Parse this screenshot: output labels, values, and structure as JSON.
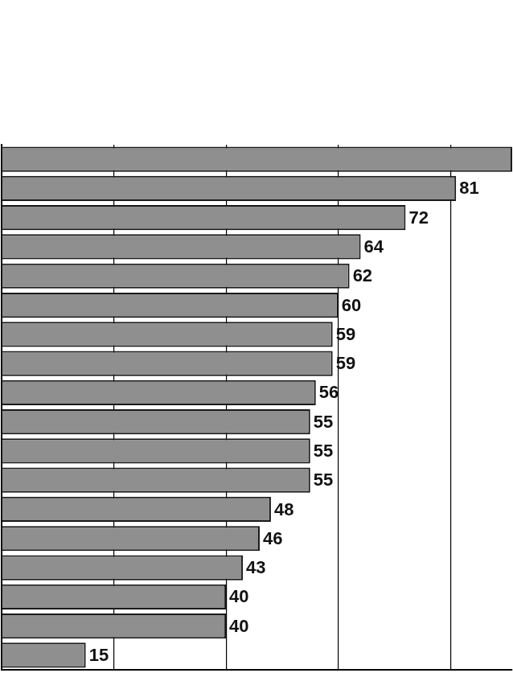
{
  "chart_data": {
    "type": "bar",
    "orientation": "horizontal",
    "categories": [
      null,
      null,
      null,
      null,
      null,
      null,
      null,
      null,
      null,
      null,
      null,
      null,
      null,
      null,
      null,
      null,
      null,
      null
    ],
    "values": [
      91,
      81,
      72,
      64,
      62,
      60,
      59,
      59,
      56,
      55,
      55,
      55,
      48,
      46,
      43,
      40,
      40,
      15
    ],
    "value_labels": [
      null,
      "81",
      "72",
      "64",
      "62",
      "60",
      "59",
      "59",
      "56",
      "55",
      "55",
      "55",
      "48",
      "46",
      "43",
      "40",
      "40",
      "15"
    ],
    "data_labels": true,
    "color": "#8f8f8f",
    "xlim": [
      0,
      91
    ],
    "xticks": [
      0,
      20,
      40,
      60,
      80
    ],
    "grid": true,
    "tick_labels": false
  }
}
